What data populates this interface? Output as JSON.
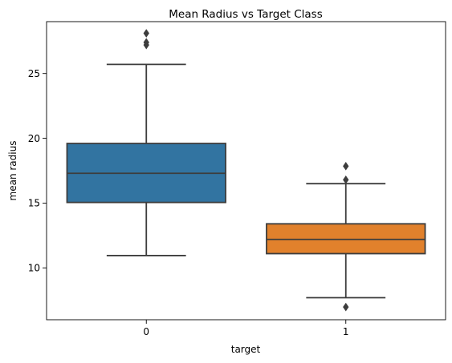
{
  "chart_data": {
    "type": "box",
    "title": "Mean Radius vs Target Class",
    "xlabel": "target",
    "ylabel": "mean radius",
    "categories": [
      "0",
      "1"
    ],
    "ylim": [
      6.0,
      29.0
    ],
    "yticks": [
      10,
      15,
      20,
      25
    ],
    "grid": false,
    "boxes": [
      {
        "category": "0",
        "color": "#3274a1",
        "whisker_low": 10.95,
        "q1": 15.05,
        "median": 17.3,
        "q3": 19.6,
        "whisker_high": 25.7,
        "outliers": [
          27.2,
          27.4,
          28.1
        ]
      },
      {
        "category": "1",
        "color": "#e1812c",
        "whisker_low": 7.7,
        "q1": 11.1,
        "median": 12.2,
        "q3": 13.4,
        "whisker_high": 16.5,
        "outliers": [
          6.98,
          16.8,
          17.85
        ]
      }
    ]
  }
}
